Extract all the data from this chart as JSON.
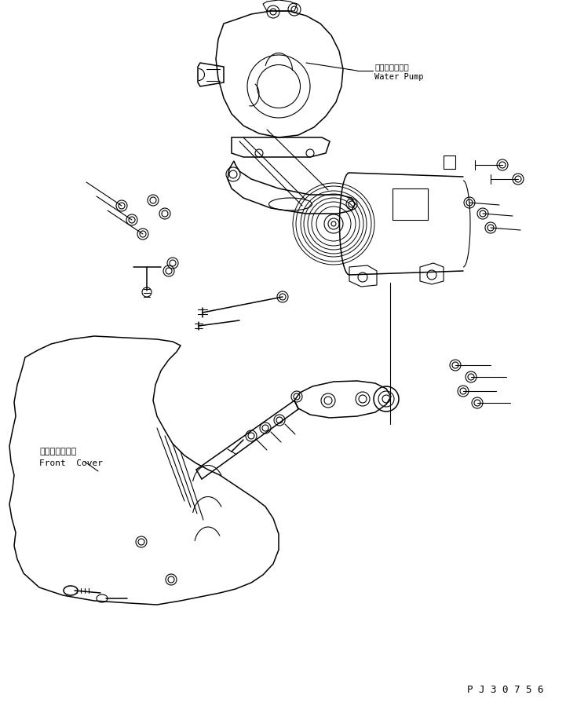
{
  "bg_color": "#ffffff",
  "line_color": "#000000",
  "lw": 0.8,
  "lw2": 1.1,
  "fig_width": 7.21,
  "fig_height": 8.99,
  "dpi": 100,
  "watermark": "P J 3 0 7 5 6",
  "label_water_pump_ja": "ウォータボンプ",
  "label_water_pump_en": "Water Pump",
  "label_front_cover_ja": "フロントカバー",
  "label_front_cover_en": "Front  Cover"
}
